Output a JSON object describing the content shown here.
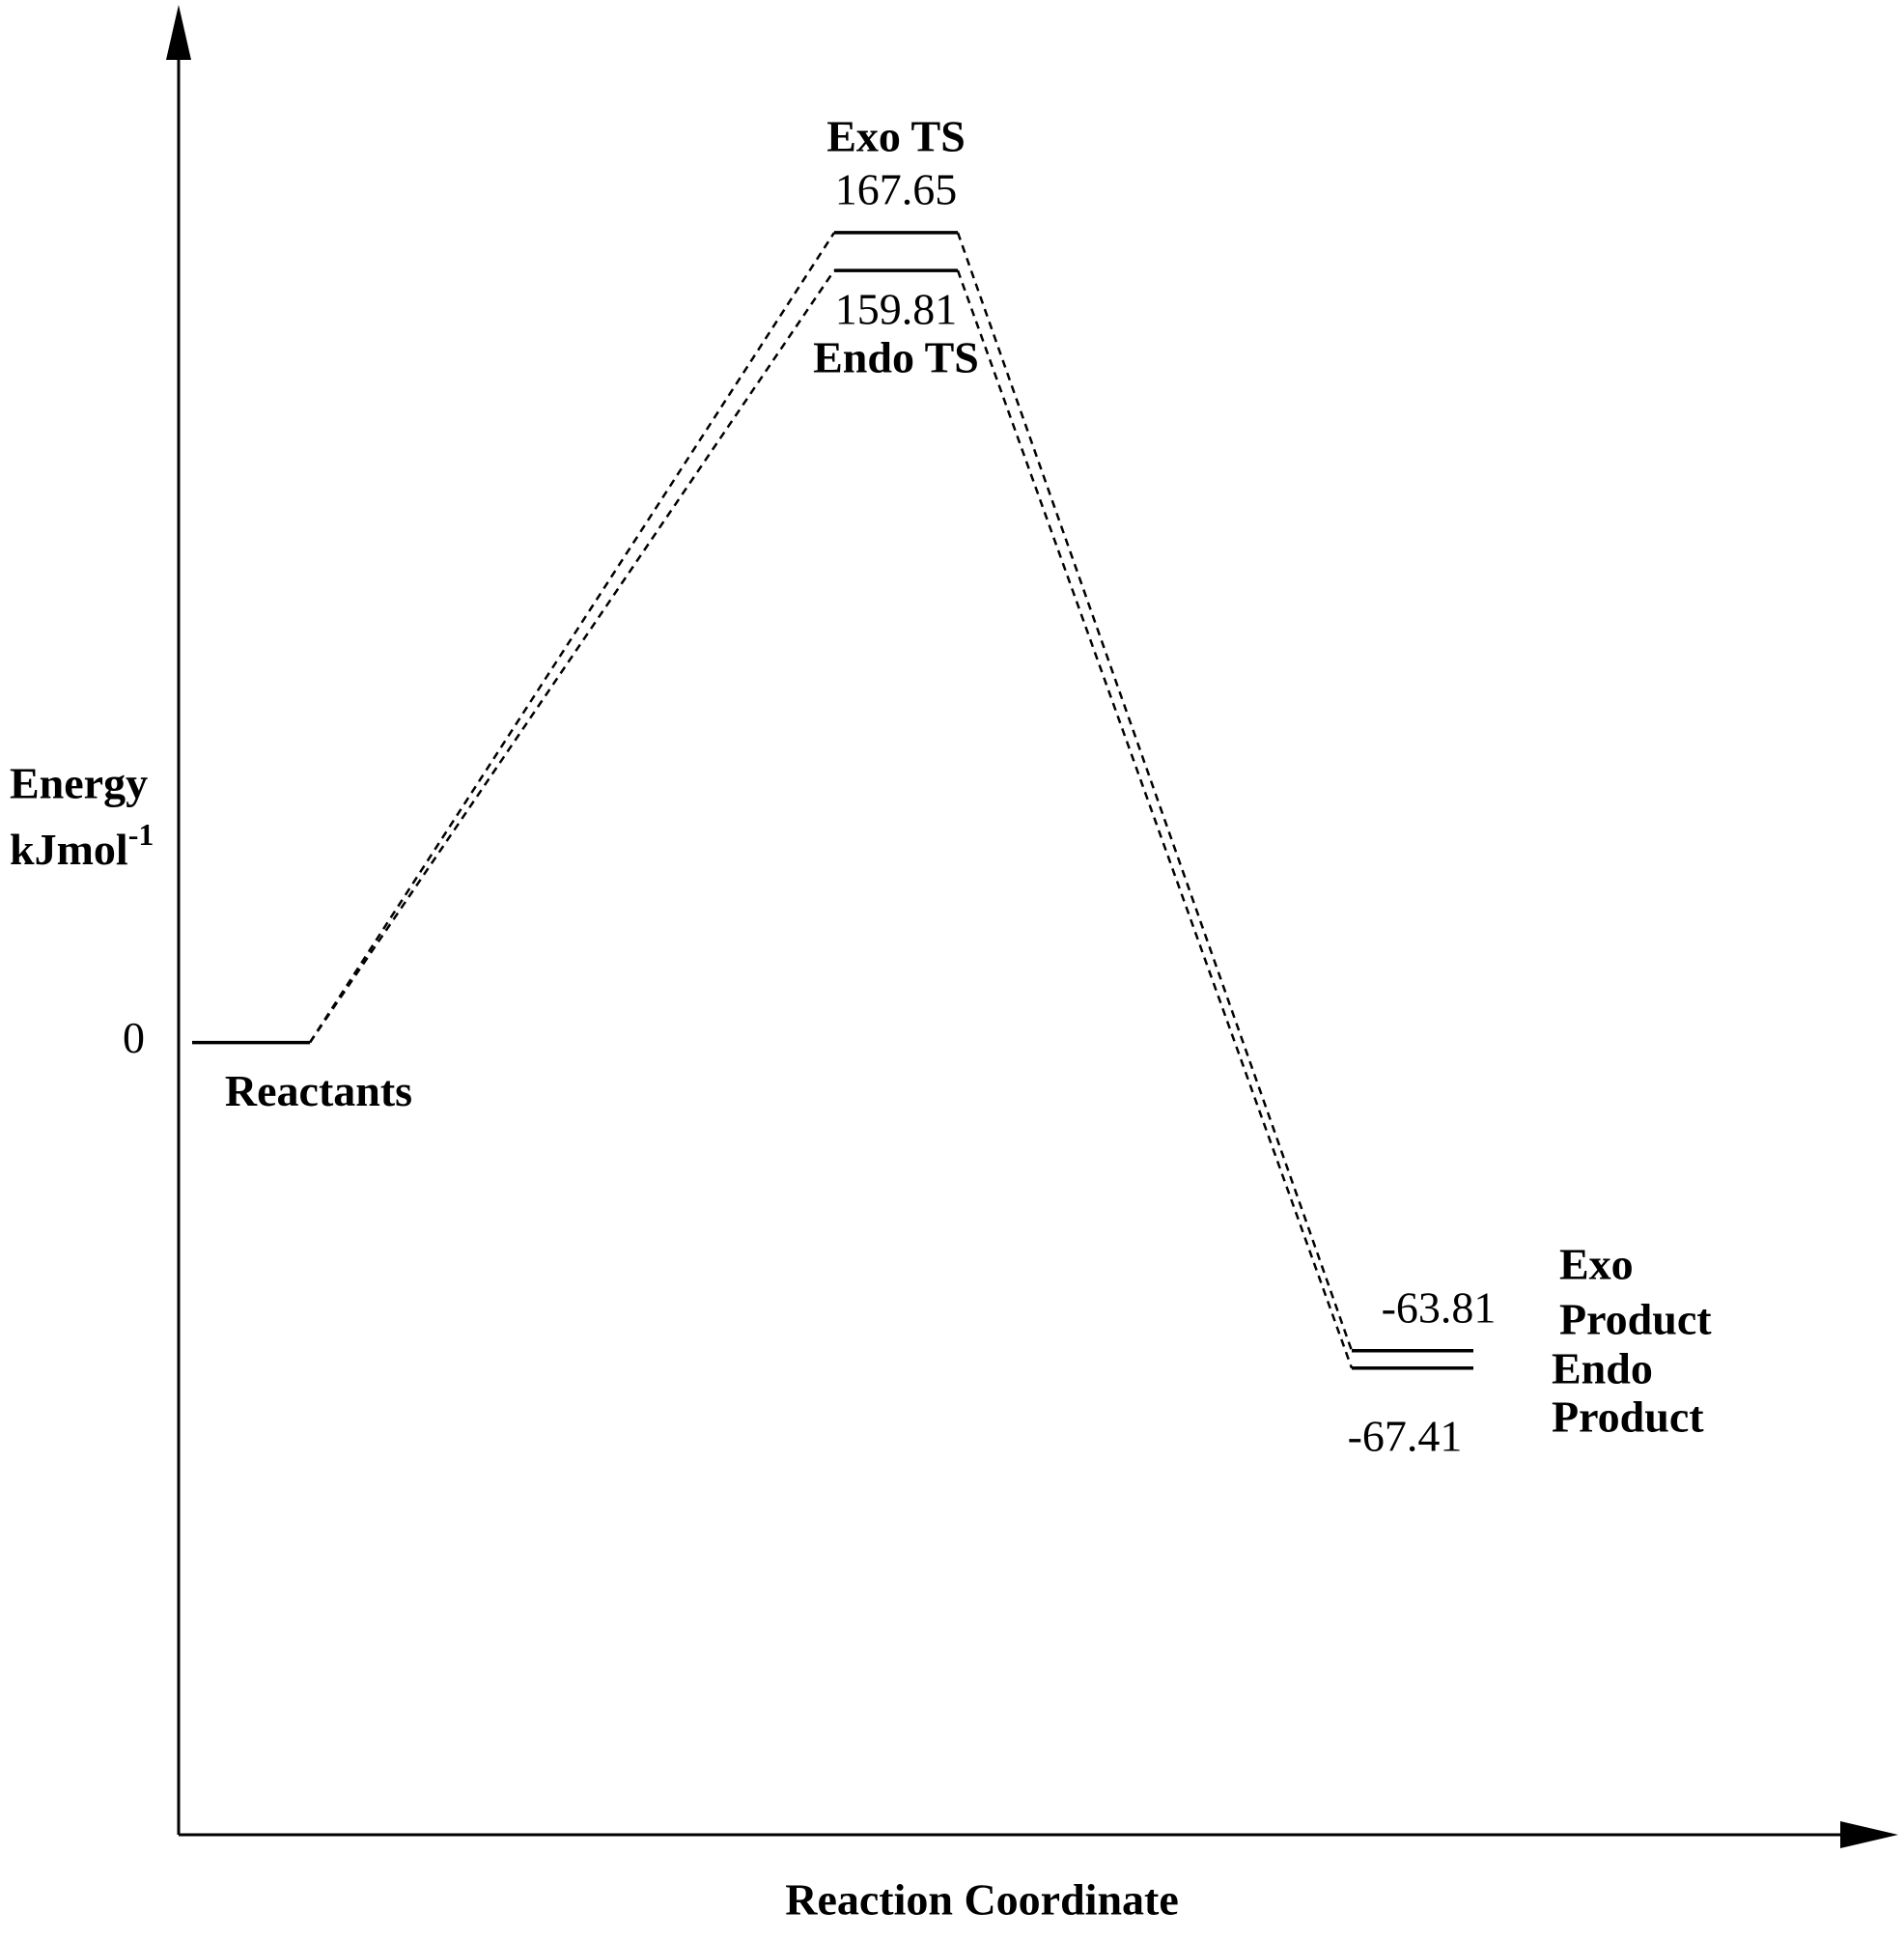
{
  "chart_data": {
    "type": "energy_diagram",
    "ylabel": [
      "Energy",
      "kJmol"
    ],
    "ylabel_sup": "-1",
    "xlabel": "Reaction Coordinate",
    "ylim": [
      -164,
      212
    ],
    "yticks": [
      0
    ],
    "color": "#000000",
    "levels": [
      {
        "name": [
          "Reactants"
        ],
        "value": 0
      },
      {
        "name": [
          "Exo TS"
        ],
        "value": 167.65
      },
      {
        "name": [
          "Endo TS"
        ],
        "value": 159.81
      },
      {
        "name": [
          "Exo",
          "Product"
        ],
        "value": -63.81
      },
      {
        "name": [
          "Endo",
          "Product"
        ],
        "value": -67.41
      }
    ],
    "connections": [
      [
        0,
        1
      ],
      [
        0,
        2
      ],
      [
        1,
        3
      ],
      [
        2,
        4
      ]
    ]
  }
}
